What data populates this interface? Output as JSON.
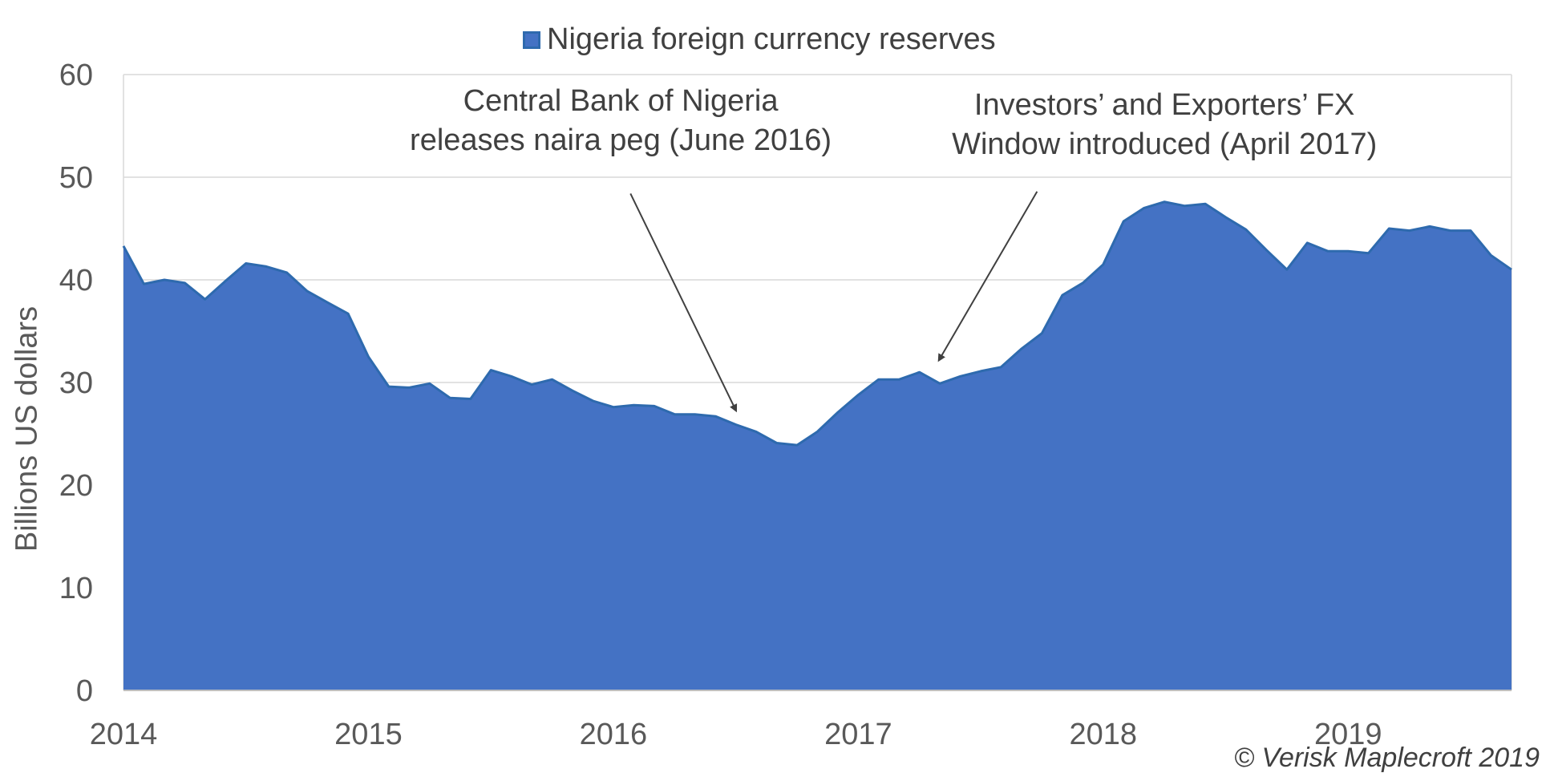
{
  "chart_data": {
    "type": "area",
    "legend": {
      "label": "Nigeria foreign currency reserves",
      "position": "top-center"
    },
    "ylabel": "Billions US dollars",
    "xlabel": "",
    "ylim": [
      0,
      60
    ],
    "yticks": [
      0,
      10,
      20,
      30,
      40,
      50,
      60
    ],
    "xlim": [
      2014.0,
      2019.667
    ],
    "xticks": [
      "2014",
      "2015",
      "2016",
      "2017",
      "2018",
      "2019"
    ],
    "grid": "horizontal",
    "colors": {
      "fill": "#4472C4",
      "line": "#2E6AAE",
      "grid": "#D9D9D9",
      "arrow": "#404040"
    },
    "series": [
      {
        "name": "Nigeria foreign currency reserves",
        "x": [
          2014.0,
          2014.083,
          2014.167,
          2014.25,
          2014.333,
          2014.417,
          2014.5,
          2014.583,
          2014.667,
          2014.75,
          2014.833,
          2014.917,
          2015.0,
          2015.083,
          2015.167,
          2015.25,
          2015.333,
          2015.417,
          2015.5,
          2015.583,
          2015.667,
          2015.75,
          2015.833,
          2015.917,
          2016.0,
          2016.083,
          2016.167,
          2016.25,
          2016.333,
          2016.417,
          2016.5,
          2016.583,
          2016.667,
          2016.75,
          2016.833,
          2016.917,
          2017.0,
          2017.083,
          2017.167,
          2017.25,
          2017.333,
          2017.417,
          2017.5,
          2017.583,
          2017.667,
          2017.75,
          2017.833,
          2017.917,
          2018.0,
          2018.083,
          2018.167,
          2018.25,
          2018.333,
          2018.417,
          2018.5,
          2018.583,
          2018.667,
          2018.75,
          2018.833,
          2018.917,
          2019.0,
          2019.083,
          2019.167,
          2019.25,
          2019.333,
          2019.417,
          2019.5,
          2019.583,
          2019.667
        ],
        "values": [
          43.3,
          39.6,
          40.0,
          39.7,
          38.1,
          39.9,
          41.6,
          41.3,
          40.7,
          38.9,
          37.8,
          36.7,
          32.5,
          29.6,
          29.5,
          29.9,
          28.5,
          28.4,
          31.2,
          30.6,
          29.8,
          30.3,
          29.2,
          28.2,
          27.6,
          27.8,
          27.7,
          26.9,
          26.9,
          26.7,
          25.9,
          25.2,
          24.1,
          23.9,
          25.2,
          27.1,
          28.8,
          30.3,
          30.3,
          31.0,
          29.9,
          30.6,
          31.1,
          31.5,
          33.3,
          34.8,
          38.5,
          39.7,
          41.5,
          45.7,
          47.0,
          47.6,
          47.2,
          47.4,
          46.1,
          44.9,
          42.9,
          41.0,
          43.6,
          42.8,
          42.8,
          42.6,
          45.0,
          44.8,
          45.2,
          44.8,
          44.8,
          42.4,
          41.0
        ]
      }
    ],
    "annotations": [
      {
        "text": "Central Bank of Nigeria\nreleases naira peg (June 2016)",
        "label_x": 2016.03,
        "label_y": 55.5,
        "arrow_from": [
          2016.07,
          48.4
        ],
        "arrow_to": [
          2016.5,
          27.3
        ]
      },
      {
        "text": "Investors’ and Exporters’ FX\nWindow introduced (April 2017)",
        "label_x": 2018.25,
        "label_y": 55.1,
        "arrow_from": [
          2017.73,
          48.6
        ],
        "arrow_to": [
          2017.33,
          32.2
        ]
      }
    ],
    "credit": "© Verisk Maplecroft 2019"
  }
}
